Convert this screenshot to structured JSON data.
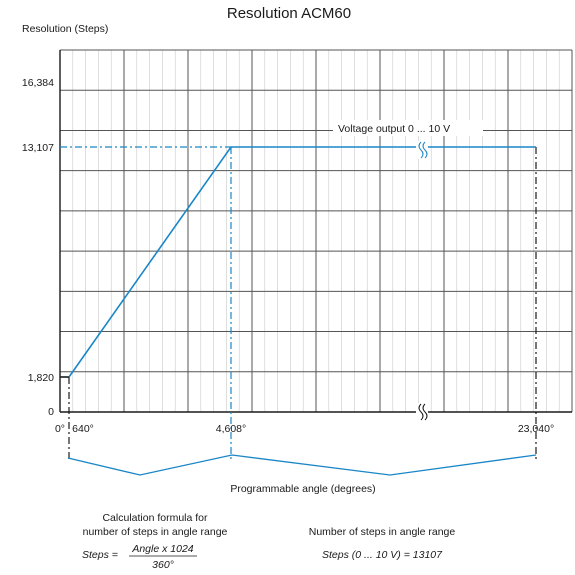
{
  "chart_data": {
    "type": "line",
    "title": "Resolution ACM60",
    "ylabel": "Resolution (Steps)",
    "xlabel": "Programmable angle (degrees)",
    "x_ticks": [
      "0°",
      "640°",
      "4,608°",
      "23,040°"
    ],
    "y_ticks": [
      "0",
      "1,820",
      "13,107",
      "16,384"
    ],
    "series": [
      {
        "x": [
          640,
          4608,
          23040
        ],
        "y": [
          1820,
          13107,
          13107
        ],
        "color": "#1a86c8"
      }
    ],
    "annotation": "Voltage output 0 ... 10 V",
    "grid": true,
    "line_color": "#1a86c8"
  },
  "formulas": {
    "left_heading_1": "Calculation formula for",
    "left_heading_2": "number of steps in angle range",
    "steps_eq": "Steps =",
    "numerator": "Angle x 1024",
    "denominator": "360°",
    "right_heading": "Number of steps in angle range",
    "right_formula": "Steps (0 ... 10 V) = 13107"
  }
}
